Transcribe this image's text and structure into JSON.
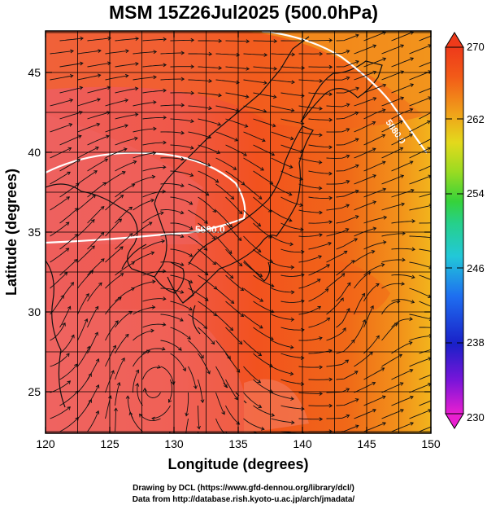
{
  "title": "MSM 15Z26Jul2025 (500.0hPa)",
  "x_axis": {
    "label": "Longitude (degrees)",
    "ticks": [
      120,
      125,
      130,
      135,
      140,
      145,
      150
    ],
    "range": [
      120,
      150
    ]
  },
  "y_axis": {
    "label": "Latitude  (degrees)",
    "ticks": [
      25,
      30,
      35,
      40,
      45
    ],
    "range": [
      22.4,
      47.6
    ]
  },
  "colorbar": {
    "labels": [
      270,
      262,
      254,
      246,
      238,
      230
    ],
    "range": [
      230,
      270
    ],
    "colors": [
      "#e91fd0",
      "#7a15d9",
      "#1a20c8",
      "#1e6ef0",
      "#22c8d8",
      "#26d08a",
      "#36d23a",
      "#9adb22",
      "#e3d91c",
      "#f0a11a",
      "#f25a18",
      "#ee3a1a"
    ]
  },
  "contours": [
    {
      "label": "5880.0"
    },
    {
      "label": "5900.0"
    }
  ],
  "credits": {
    "line1": "Drawing by DCL (https://www.gfd-dennou.org/library/dcl/)",
    "line2": "Data from http://database.rish.kyoto-u.ac.jp/arch/jmadata/"
  }
}
